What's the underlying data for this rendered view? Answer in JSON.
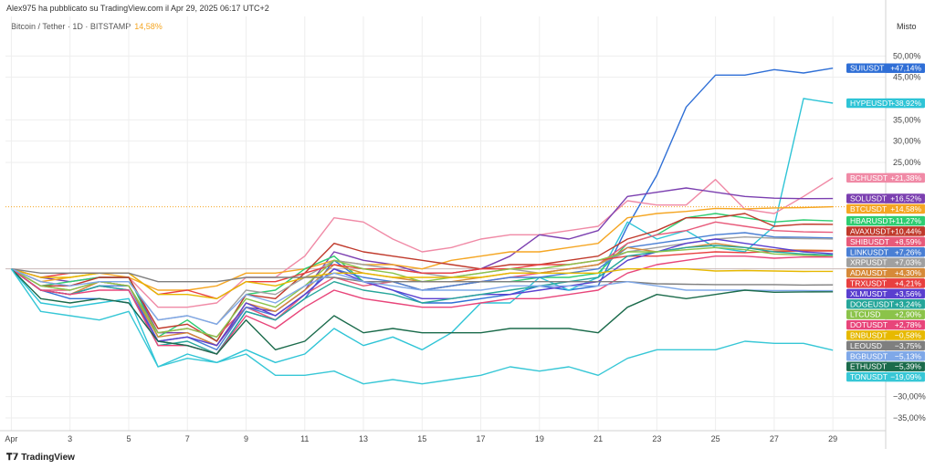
{
  "header": {
    "published": "Alex975 ha pubblicato su TradingView.com il Apr 29, 2025 06:17 UTC+2",
    "symbol": "Bitcoin / Tether · 1D · BITSTAMP",
    "symbol_change": "14,58%",
    "scale_mode": "Misto",
    "logo_text": "TradingView"
  },
  "colors": {
    "grid": "#eeeeee",
    "axis": "#d0d0d0",
    "btc_line": "#f5a623"
  },
  "chart_data": {
    "type": "line",
    "title": "Bitcoin / Tether · 1D · BITSTAMP",
    "xlabel": "",
    "ylabel": "",
    "x": [
      1,
      2,
      3,
      4,
      5,
      6,
      7,
      8,
      9,
      10,
      11,
      12,
      13,
      14,
      15,
      16,
      17,
      18,
      19,
      20,
      21,
      22,
      23,
      24,
      25,
      26,
      27,
      28,
      29
    ],
    "x_ticks": [
      {
        "x": 1,
        "label": "Apr"
      },
      {
        "x": 3,
        "label": "3"
      },
      {
        "x": 5,
        "label": "5"
      },
      {
        "x": 7,
        "label": "7"
      },
      {
        "x": 9,
        "label": "9"
      },
      {
        "x": 11,
        "label": "11"
      },
      {
        "x": 13,
        "label": "13"
      },
      {
        "x": 15,
        "label": "15"
      },
      {
        "x": 17,
        "label": "17"
      },
      {
        "x": 19,
        "label": "19"
      },
      {
        "x": 21,
        "label": "21"
      },
      {
        "x": 23,
        "label": "23"
      },
      {
        "x": 25,
        "label": "25"
      },
      {
        "x": 27,
        "label": "27"
      },
      {
        "x": 29,
        "label": "29"
      }
    ],
    "y_ticks": [
      {
        "v": 50,
        "label": "50,00%"
      },
      {
        "v": 45,
        "label": "45,00%"
      },
      {
        "v": 35,
        "label": "35,00%"
      },
      {
        "v": 30,
        "label": "30,00%"
      },
      {
        "v": 25,
        "label": "25,00%"
      },
      {
        "v": -30,
        "label": "−30,00%"
      },
      {
        "v": -35,
        "label": "−35,00%"
      }
    ],
    "xlim": [
      0.8,
      30.8
    ],
    "ylim": [
      -38,
      55
    ],
    "grid": true,
    "legend": "right axis labels",
    "series": [
      {
        "name": "SUIUSDT",
        "label": "+47,14%",
        "color": "#2f6fd6",
        "values": [
          0,
          -5,
          -7,
          -7,
          -8,
          -17,
          -18,
          -20,
          -10,
          -12,
          -7,
          2,
          -3,
          -5,
          -8,
          -8,
          -7,
          -6,
          -4,
          -5,
          -4,
          10,
          22,
          38,
          45.5,
          45.5,
          46.8,
          46,
          47.14
        ]
      },
      {
        "name": "HYPEUSDT",
        "label": "+38,92%",
        "color": "#2ec4d6",
        "values": [
          0,
          -8,
          -9,
          -8,
          -7,
          -23,
          -20,
          -22,
          -19,
          -22,
          -20,
          -14,
          -18,
          -16,
          -19,
          -15,
          -8,
          -8,
          -2,
          -5,
          -2,
          11,
          7,
          9,
          5,
          4,
          10,
          40,
          38.92
        ]
      },
      {
        "name": "BCHUSDT",
        "label": "+21,38%",
        "color": "#f08aa6",
        "values": [
          0,
          -3,
          -4,
          -2,
          -2,
          -9,
          -9,
          -8,
          -2,
          -2,
          3,
          12,
          11,
          7,
          4,
          5,
          7,
          8,
          8,
          9,
          10,
          16,
          15,
          15,
          21,
          14,
          13,
          17,
          21.38
        ]
      },
      {
        "name": "SOLUSDT",
        "label": "+16,52%",
        "color": "#7b3fb0",
        "values": [
          0,
          -2,
          -3,
          -2,
          -2,
          -15,
          -15,
          -18,
          -9,
          -10,
          -5,
          4,
          2,
          1,
          -1,
          -1,
          0,
          3,
          8,
          7,
          9,
          17,
          18,
          19,
          18,
          17,
          16.6,
          16.5,
          16.52
        ]
      },
      {
        "name": "BTCUSDT",
        "label": "+14,58%",
        "color": "#f5a623",
        "values": [
          0,
          -3,
          -2,
          -1,
          -2,
          -5,
          -5,
          -4,
          -1,
          -1,
          0,
          2,
          1,
          1,
          0,
          2,
          3,
          4,
          4,
          5,
          6,
          12,
          13,
          13.5,
          14.2,
          14.1,
          14.3,
          14.4,
          14.58
        ]
      },
      {
        "name": "HBARUSDT",
        "label": "+11,27%",
        "color": "#2ecc71",
        "values": [
          0,
          -4,
          -3,
          -2,
          -2,
          -16,
          -12,
          -17,
          -6,
          -5,
          0,
          3,
          -3,
          -3,
          -5,
          -4,
          -3,
          -3,
          -2,
          -2,
          -1,
          6,
          8,
          12,
          13,
          12,
          11,
          11.5,
          11.27
        ]
      },
      {
        "name": "AVAXUSDT",
        "label": "+10,44%",
        "color": "#c0392b",
        "values": [
          0,
          -4,
          -4,
          -2,
          -2,
          -14,
          -13,
          -17,
          -6,
          -7,
          -1,
          6,
          4,
          3,
          2,
          1,
          0,
          1,
          1,
          2,
          3,
          7,
          9,
          12,
          12,
          13,
          10,
          10.5,
          10.44
        ]
      },
      {
        "name": "SHIBUSDT",
        "label": "+8,59%",
        "color": "#e85a7a",
        "values": [
          0,
          -5,
          -5,
          -3,
          -4,
          -15,
          -14,
          -16,
          -9,
          -12,
          -6,
          -2,
          -4,
          -3,
          -5,
          -4,
          -3,
          -2,
          -1,
          0,
          1,
          6,
          8,
          9,
          11,
          10,
          9,
          8.7,
          8.59
        ]
      },
      {
        "name": "LINKUSDT",
        "label": "+7,26%",
        "color": "#4a7fd4",
        "values": [
          0,
          -5,
          -6,
          -4,
          -4,
          -17,
          -16,
          -19,
          -9,
          -11,
          -6,
          0,
          -2,
          -3,
          -5,
          -4,
          -3,
          -2,
          -2,
          -1,
          0,
          5,
          6,
          7,
          8,
          8.5,
          7.5,
          7.4,
          7.26
        ]
      },
      {
        "name": "XRPUSDT",
        "label": "+7,03%",
        "color": "#a0a0a0",
        "values": [
          0,
          -4,
          -5,
          -3,
          -3,
          -12,
          -11,
          -13,
          -5,
          -6,
          -2,
          2,
          1,
          0,
          -1,
          -2,
          -1,
          0,
          -1,
          0,
          1,
          4,
          5,
          6,
          7,
          7.5,
          7.2,
          7.1,
          7.03
        ]
      },
      {
        "name": "ADAUSDT",
        "label": "+4,30%",
        "color": "#d68a3a",
        "values": [
          0,
          -5,
          -6,
          -3,
          -4,
          -16,
          -15,
          -18,
          -8,
          -10,
          -5,
          1,
          -1,
          -2,
          -3,
          -3,
          -2,
          -1,
          -1,
          0,
          1,
          5,
          4,
          5,
          6,
          5,
          4.5,
          4.4,
          4.3
        ]
      },
      {
        "name": "TRXUSDT",
        "label": "+4,21%",
        "color": "#e84040",
        "values": [
          0,
          -2,
          -1,
          -1,
          -1,
          -6,
          -5,
          -7,
          -3,
          -3,
          -1,
          1,
          0,
          0,
          -1,
          -1,
          0,
          0,
          1,
          1,
          2,
          3,
          3,
          3.5,
          4,
          3.8,
          4.1,
          4.2,
          4.21
        ]
      },
      {
        "name": "XLMUSDT",
        "label": "+3,56%",
        "color": "#5a3fcf",
        "values": [
          0,
          -5,
          -6,
          -4,
          -5,
          -17,
          -16,
          -18,
          -8,
          -11,
          -6,
          0,
          -3,
          -5,
          -7,
          -7,
          -6,
          -6,
          -5,
          -4,
          -3,
          2,
          4,
          6,
          7,
          6,
          5,
          4,
          3.56
        ]
      },
      {
        "name": "DOGEUSDT",
        "label": "+3,24%",
        "color": "#26a69a",
        "values": [
          0,
          -5,
          -6,
          -4,
          -5,
          -18,
          -17,
          -20,
          -10,
          -12,
          -7,
          -3,
          -5,
          -6,
          -8,
          -7,
          -6,
          -5,
          -4,
          -3,
          -2,
          3,
          4,
          5,
          5.5,
          5,
          4,
          3.5,
          3.24
        ]
      },
      {
        "name": "LTCUSD",
        "label": "+2,90%",
        "color": "#8bc34a",
        "values": [
          0,
          -4,
          -5,
          -3,
          -4,
          -15,
          -14,
          -16,
          -7,
          -9,
          -4,
          2,
          0,
          -1,
          -3,
          -2,
          -1,
          0,
          0,
          1,
          2,
          4,
          4,
          4.5,
          5,
          4.5,
          3.5,
          3.2,
          2.9
        ]
      },
      {
        "name": "DOTUSDT",
        "label": "+2,78%",
        "color": "#e8457a",
        "values": [
          0,
          -5,
          -6,
          -5,
          -5,
          -18,
          -18,
          -20,
          -11,
          -14,
          -9,
          -5,
          -7,
          -8,
          -9,
          -9,
          -8,
          -7,
          -7,
          -6,
          -5,
          -1,
          1,
          2,
          3,
          3,
          2.5,
          2.8,
          2.78
        ]
      },
      {
        "name": "BNBUSDT",
        "label": "−0,58%",
        "color": "#e6b800",
        "values": [
          0,
          -2,
          -2,
          -1,
          -1,
          -6,
          -6,
          -7,
          -3,
          -4,
          -2,
          -1,
          -1,
          -2,
          -2,
          -2,
          -2,
          -1,
          -1,
          -1,
          -1,
          0,
          0,
          0,
          -0.5,
          -0.4,
          -0.5,
          -0.6,
          -0.58
        ]
      },
      {
        "name": "LEOUSD",
        "label": "−3,75%",
        "color": "#7f7f7f",
        "values": [
          0,
          -1,
          -1,
          -1,
          -1,
          -3,
          -3,
          -3,
          -2,
          -2,
          -2,
          -2,
          -3,
          -3,
          -3,
          -3,
          -3,
          -3,
          -3,
          -3,
          -3,
          -3,
          -3.5,
          -3.6,
          -3.7,
          -3.7,
          -3.7,
          -3.8,
          -3.75
        ]
      },
      {
        "name": "BGBUSDT",
        "label": "−5,13%",
        "color": "#7fa8e8",
        "values": [
          0,
          -3,
          -4,
          -3,
          -3,
          -12,
          -11,
          -13,
          -6,
          -8,
          -4,
          -1,
          -3,
          -4,
          -5,
          -5,
          -5,
          -4,
          -4,
          -4,
          -4,
          -3,
          -4,
          -5,
          -5,
          -5,
          -5.1,
          -5.1,
          -5.13
        ]
      },
      {
        "name": "ETHUSDT",
        "label": "−5,39%",
        "color": "#1b6b4b",
        "values": [
          0,
          -7,
          -8,
          -7,
          -8,
          -17,
          -18,
          -20,
          -12,
          -19,
          -17,
          -11,
          -15,
          -14,
          -15,
          -15,
          -15,
          -14,
          -14,
          -14,
          -15,
          -9,
          -6,
          -7,
          -6,
          -5,
          -5.5,
          -5.4,
          -5.39
        ]
      },
      {
        "name": "TONUSDT",
        "label": "−19,09%",
        "color": "#37c7d6",
        "values": [
          0,
          -10,
          -11,
          -12,
          -10,
          -23,
          -21,
          -22,
          -20,
          -25,
          -25,
          -24,
          -27,
          -26,
          -27,
          -26,
          -25,
          -23,
          -24,
          -23,
          -25,
          -21,
          -19,
          -19,
          -19,
          -17,
          -17.5,
          -17.5,
          -19.09
        ]
      }
    ]
  }
}
